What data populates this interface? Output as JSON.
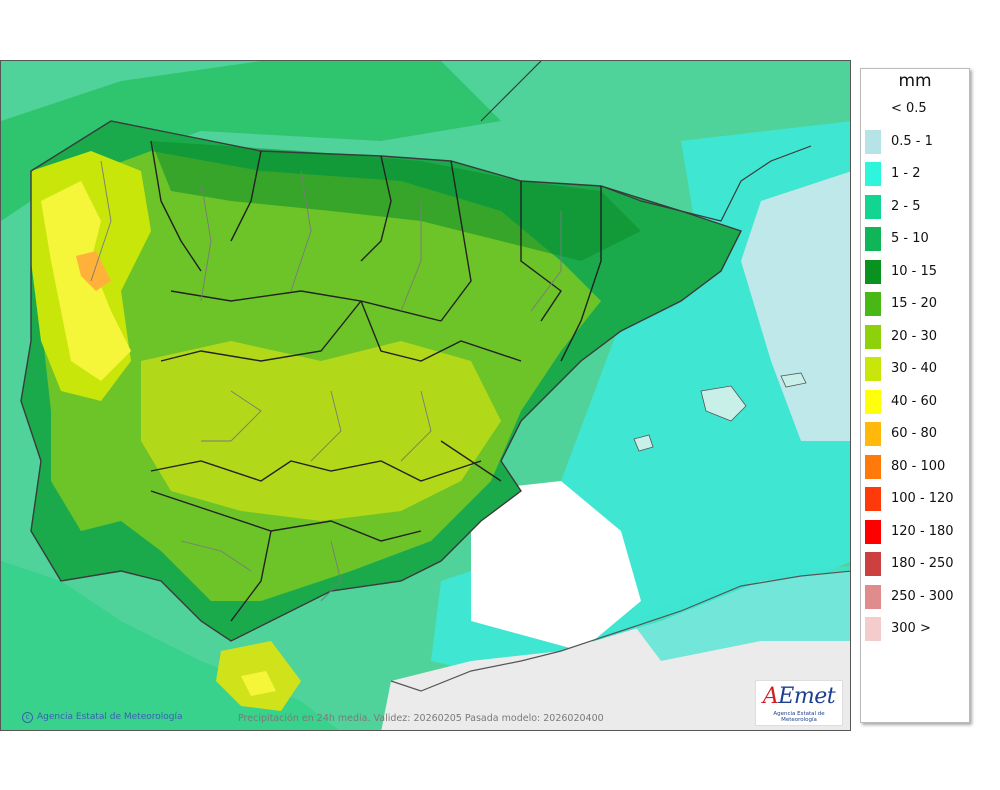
{
  "legend": {
    "unit": "mm",
    "items": [
      {
        "label": "< 0.5",
        "color": "#ffffff"
      },
      {
        "label": "0.5 - 1",
        "color": "#b6e4e6"
      },
      {
        "label": "1 - 2",
        "color": "#2ff5dc"
      },
      {
        "label": "2 - 5",
        "color": "#12d591"
      },
      {
        "label": "5 - 10",
        "color": "#0fb657"
      },
      {
        "label": "10 - 15",
        "color": "#0a9220"
      },
      {
        "label": "15 - 20",
        "color": "#47b814"
      },
      {
        "label": "20 - 30",
        "color": "#8cd10a"
      },
      {
        "label": "30 - 40",
        "color": "#c9e60a"
      },
      {
        "label": "40 - 60",
        "color": "#ffff0a"
      },
      {
        "label": "60 - 80",
        "color": "#ffb90a"
      },
      {
        "label": "80 - 100",
        "color": "#ff7a0a"
      },
      {
        "label": "100 - 120",
        "color": "#ff3a0a"
      },
      {
        "label": "120 - 180",
        "color": "#ff0000"
      },
      {
        "label": "180 - 250",
        "color": "#cc4040"
      },
      {
        "label": "250 - 300",
        "color": "#e08c8c"
      },
      {
        "label": "300 >",
        "color": "#f5cccc"
      }
    ]
  },
  "map": {
    "credit": "Agencia Estatal de Meteorología",
    "caption": "Precipitación en 24h media. Validez: 20260205 Pasada modelo: 2026020400"
  },
  "logo": {
    "brand_a": "A",
    "brand_rest": "Emet",
    "subtitle": "Agencia Estatal de Meteorología"
  }
}
